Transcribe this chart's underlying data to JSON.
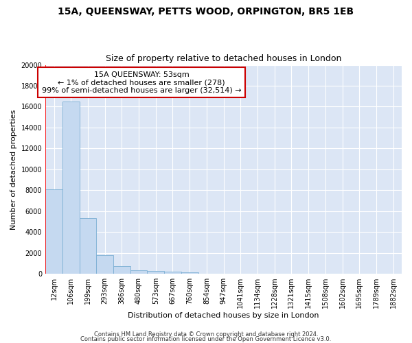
{
  "title": "15A, QUEENSWAY, PETTS WOOD, ORPINGTON, BR5 1EB",
  "subtitle": "Size of property relative to detached houses in London",
  "xlabel": "Distribution of detached houses by size in London",
  "ylabel": "Number of detached properties",
  "categories": [
    "12sqm",
    "106sqm",
    "199sqm",
    "293sqm",
    "386sqm",
    "480sqm",
    "573sqm",
    "667sqm",
    "760sqm",
    "854sqm",
    "947sqm",
    "1041sqm",
    "1134sqm",
    "1228sqm",
    "1321sqm",
    "1415sqm",
    "1508sqm",
    "1602sqm",
    "1695sqm",
    "1789sqm",
    "1882sqm"
  ],
  "values": [
    8100,
    16500,
    5300,
    1750,
    750,
    340,
    250,
    200,
    130,
    0,
    0,
    0,
    0,
    0,
    0,
    0,
    0,
    0,
    0,
    0,
    0
  ],
  "bar_color": "#c5d9f0",
  "bar_edge_color": "#7bafd4",
  "annotation_text": "15A QUEENSWAY: 53sqm\n← 1% of detached houses are smaller (278)\n99% of semi-detached houses are larger (32,514) →",
  "annotation_box_color": "#ffffff",
  "annotation_box_edge": "#cc0000",
  "ylim": [
    0,
    20000
  ],
  "yticks": [
    0,
    2000,
    4000,
    6000,
    8000,
    10000,
    12000,
    14000,
    16000,
    18000,
    20000
  ],
  "vline_x": -0.5,
  "footer1": "Contains HM Land Registry data © Crown copyright and database right 2024.",
  "footer2": "Contains public sector information licensed under the Open Government Licence v3.0.",
  "fig_bg_color": "#ffffff",
  "plot_bg_color": "#dce6f5",
  "grid_color": "#ffffff",
  "title_fontsize": 10,
  "subtitle_fontsize": 9,
  "tick_fontsize": 7,
  "ylabel_fontsize": 8,
  "xlabel_fontsize": 8,
  "footer_fontsize": 6,
  "annotation_fontsize": 8
}
